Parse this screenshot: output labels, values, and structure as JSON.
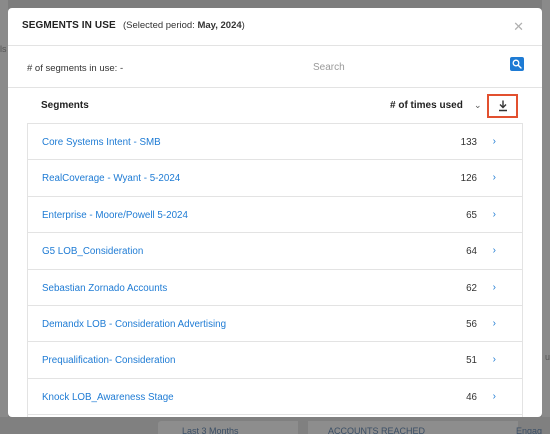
{
  "background": {
    "left_fragment": "ls",
    "right_fragment": "u",
    "bottom_labels": [
      "Last 3 Months",
      "ACCOUNTS REACHED",
      "Engag"
    ]
  },
  "modal": {
    "title": "SEGMENTS IN USE",
    "period_prefix": "(Selected period: ",
    "period_value": "May, 2024",
    "period_suffix": ")",
    "close_icon": "close-icon"
  },
  "summary": {
    "count_label": "# of segments in use: -",
    "search_placeholder": "Search",
    "search_value": ""
  },
  "list_header": {
    "segments_label": "Segments",
    "times_used_label": "# of times used",
    "sort_icon": "chevron-down-icon",
    "download_icon": "download-icon"
  },
  "segments": [
    {
      "name": "Core Systems Intent - SMB",
      "count": "133"
    },
    {
      "name": "RealCoverage - Wyant - 5-2024",
      "count": "126"
    },
    {
      "name": "Enterprise - Moore/Powell 5-2024",
      "count": "65"
    },
    {
      "name": "G5 LOB_Consideration",
      "count": "64"
    },
    {
      "name": "Sebastian Zornado Accounts",
      "count": "62"
    },
    {
      "name": "Demandx LOB - Consideration Advertising",
      "count": "56"
    },
    {
      "name": "Prequalification- Consideration",
      "count": "51"
    },
    {
      "name": "Knock LOB_Awareness Stage",
      "count": "46"
    }
  ],
  "colors": {
    "accent": "#1e7bd4",
    "highlight_border": "#e2502f"
  }
}
